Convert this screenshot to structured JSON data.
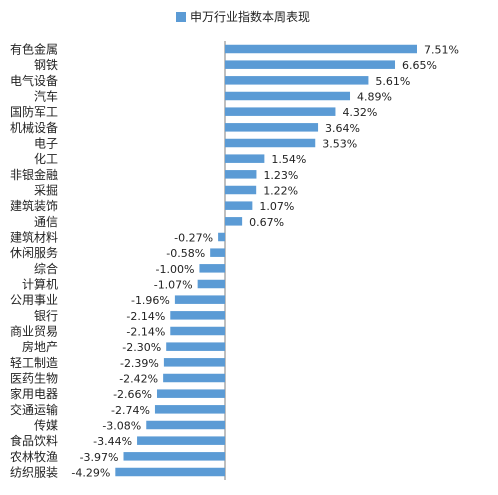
{
  "chart_data": {
    "type": "bar",
    "orientation": "horizontal",
    "legend": {
      "position": "top-center"
    },
    "grid": false,
    "xlim": [
      -4.6,
      8.1
    ],
    "colors": {
      "bar": "#5b9bd5",
      "text": "#222222",
      "axis": "#7f7f7f"
    },
    "series": [
      {
        "name": "申万行业指数本周表现",
        "values": [
          7.51,
          6.65,
          5.61,
          4.89,
          4.32,
          3.64,
          3.53,
          1.54,
          1.23,
          1.22,
          1.07,
          0.67,
          -0.27,
          -0.58,
          -1.0,
          -1.07,
          -1.96,
          -2.14,
          -2.14,
          -2.3,
          -2.39,
          -2.42,
          -2.66,
          -2.74,
          -3.08,
          -3.44,
          -3.97,
          -4.29
        ]
      }
    ],
    "categories": [
      "有色金属",
      "钢铁",
      "电气设备",
      "汽车",
      "国防军工",
      "机械设备",
      "电子",
      "化工",
      "非银金融",
      "采掘",
      "建筑装饰",
      "通信",
      "建筑材料",
      "休闲服务",
      "综合",
      "计算机",
      "公用事业",
      "银行",
      "商业贸易",
      "房地产",
      "轻工制造",
      "医药生物",
      "家用电器",
      "交通运输",
      "传媒",
      "食品饮料",
      "农林牧渔",
      "纺织服装"
    ],
    "value_labels": [
      "7.51%",
      "6.65%",
      "5.61%",
      "4.89%",
      "4.32%",
      "3.64%",
      "3.53%",
      "1.54%",
      "1.23%",
      "1.22%",
      "1.07%",
      "0.67%",
      "-0.27%",
      "-0.58%",
      "-1.00%",
      "-1.07%",
      "-1.96%",
      "-2.14%",
      "-2.14%",
      "-2.30%",
      "-2.39%",
      "-2.42%",
      "-2.66%",
      "-2.74%",
      "-3.08%",
      "-3.44%",
      "-3.97%",
      "-4.29%"
    ]
  }
}
